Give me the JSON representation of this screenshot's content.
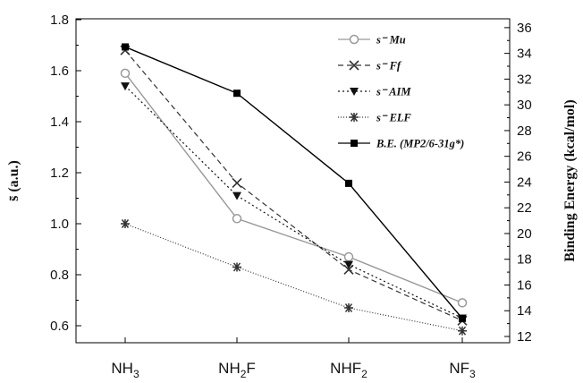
{
  "chart_data": {
    "type": "line",
    "categories": [
      "NH3",
      "NH2F",
      "NHF2",
      "NF3"
    ],
    "category_labels": [
      {
        "base": "NH",
        "sub": "3",
        "tail": ""
      },
      {
        "base": "NH",
        "sub": "2",
        "tail": "F"
      },
      {
        "base": "NHF",
        "sub": "2",
        "tail": ""
      },
      {
        "base": "NF",
        "sub": "3",
        "tail": ""
      }
    ],
    "ylabel_left": "s̄ (a.u.)",
    "ylabel_right": "Binding Energy (kcal/mol)",
    "ylim_left": [
      0.55,
      1.8
    ],
    "ylim_right": [
      11.5,
      36.5
    ],
    "yticks_left": [
      0.6,
      0.8,
      1.0,
      1.2,
      1.4,
      1.6,
      1.8
    ],
    "yticks_left_labels": [
      "0.6",
      "0.8",
      "1.0",
      "1.2",
      "1.4",
      "1.6",
      "1.8"
    ],
    "yticks_right": [
      12,
      14,
      16,
      18,
      20,
      22,
      24,
      26,
      28,
      30,
      32,
      34,
      36
    ],
    "yticks_right_labels": [
      "12",
      "14",
      "16",
      "18",
      "20",
      "22",
      "24",
      "26",
      "28",
      "30",
      "32",
      "34",
      "36"
    ],
    "legend_position": "top-right",
    "grid": false,
    "series": [
      {
        "name": "s⁻ Mu",
        "axis": "left",
        "values": [
          1.59,
          1.02,
          0.87,
          0.69
        ],
        "color": "#999999",
        "line": "solid",
        "marker": "open-circle"
      },
      {
        "name": "s⁻ Ff",
        "axis": "left",
        "values": [
          1.68,
          1.16,
          0.82,
          0.62
        ],
        "color": "#333333",
        "line": "dashed",
        "marker": "x"
      },
      {
        "name": "s⁻ AIM",
        "axis": "left",
        "values": [
          1.54,
          1.11,
          0.84,
          0.63
        ],
        "color": "#111111",
        "line": "dotted",
        "marker": "down-triangle"
      },
      {
        "name": "s⁻ ELF",
        "axis": "left",
        "values": [
          1.0,
          0.83,
          0.67,
          0.58
        ],
        "color": "#333333",
        "line": "fine-dotted",
        "marker": "asterisk"
      },
      {
        "name": "B.E. (MP2/6-31g*)",
        "axis": "right",
        "values": [
          34.5,
          30.9,
          23.9,
          13.4
        ],
        "color": "#000000",
        "line": "solid",
        "marker": "filled-square"
      }
    ]
  }
}
